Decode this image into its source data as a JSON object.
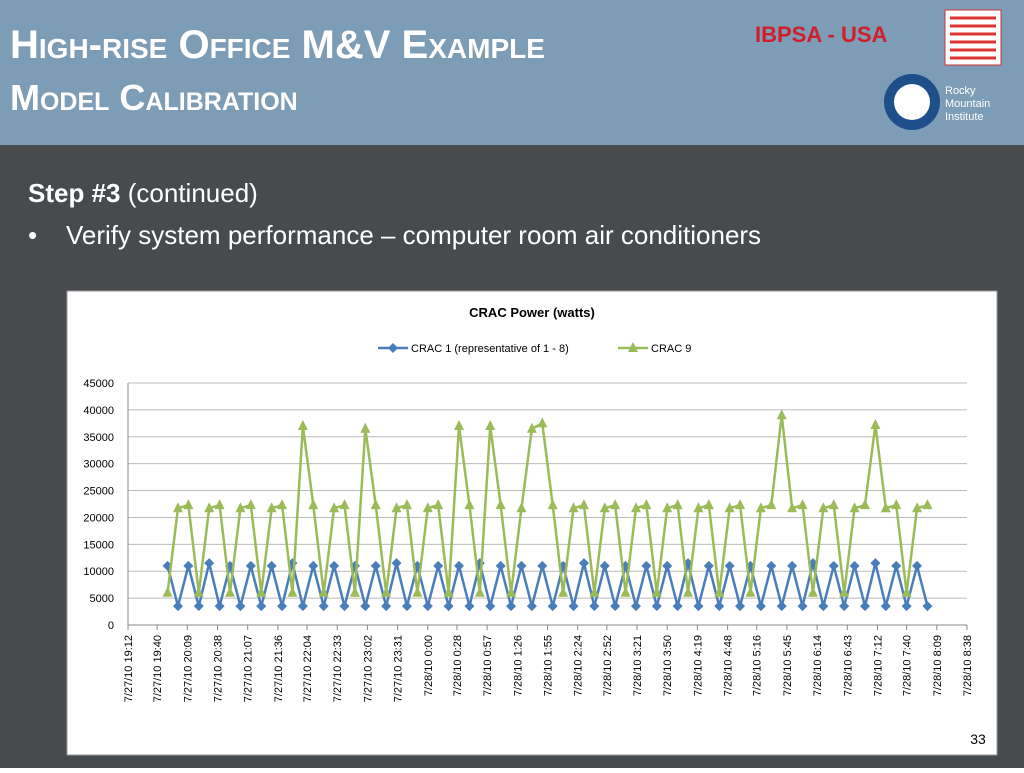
{
  "header": {
    "title": "High-rise Office M&V Example",
    "subtitle": "Model Calibration",
    "org": "IBPSA - USA",
    "logo_text": [
      "Rocky",
      "Mountain",
      "Institute"
    ]
  },
  "body": {
    "step": "Step #3",
    "step_note": "(continued)",
    "bullet": "Verify system performance – computer room air conditioners"
  },
  "page_number": "33",
  "chart_data": {
    "type": "line",
    "title": "CRAC Power (watts)",
    "x": [
      "7/27/10 19:50",
      "7/27/10 20:00",
      "7/27/10 20:10",
      "7/27/10 20:20",
      "7/27/10 20:30",
      "7/27/10 20:40",
      "7/27/10 20:50",
      "7/27/10 21:00",
      "7/27/10 21:10",
      "7/27/10 21:20",
      "7/27/10 21:30",
      "7/27/10 21:40",
      "7/27/10 21:50",
      "7/27/10 22:00",
      "7/27/10 22:10",
      "7/27/10 22:20",
      "7/27/10 22:30",
      "7/27/10 22:40",
      "7/27/10 22:50",
      "7/27/10 23:00",
      "7/27/10 23:10",
      "7/27/10 23:20",
      "7/27/10 23:30",
      "7/27/10 23:40",
      "7/27/10 23:50",
      "7/28/10 0:00",
      "7/28/10 0:10",
      "7/28/10 0:20",
      "7/28/10 0:30",
      "7/28/10 0:40",
      "7/28/10 0:50",
      "7/28/10 1:00",
      "7/28/10 1:10",
      "7/28/10 1:20",
      "7/28/10 1:30",
      "7/28/10 1:40",
      "7/28/10 1:50",
      "7/28/10 2:00",
      "7/28/10 2:10",
      "7/28/10 2:20",
      "7/28/10 2:30",
      "7/28/10 2:40",
      "7/28/10 2:50",
      "7/28/10 3:00",
      "7/28/10 3:10",
      "7/28/10 3:20",
      "7/28/10 3:30",
      "7/28/10 3:40",
      "7/28/10 3:50",
      "7/28/10 4:00",
      "7/28/10 4:10",
      "7/28/10 4:20",
      "7/28/10 4:30",
      "7/28/10 4:40",
      "7/28/10 4:50",
      "7/28/10 5:00",
      "7/28/10 5:10",
      "7/28/10 5:20",
      "7/28/10 5:30",
      "7/28/10 5:40",
      "7/28/10 5:50",
      "7/28/10 6:00",
      "7/28/10 6:10",
      "7/28/10 6:20",
      "7/28/10 6:30",
      "7/28/10 6:40",
      "7/28/10 6:50",
      "7/28/10 7:00",
      "7/28/10 7:10",
      "7/28/10 7:20",
      "7/28/10 7:30",
      "7/28/10 7:40",
      "7/28/10 7:50",
      "7/28/10 8:00"
    ],
    "series": [
      {
        "name": "CRAC 1 (representative of 1 - 8)",
        "color": "#4a7ebb",
        "marker": "diamond",
        "values": [
          11000,
          3500,
          11000,
          3500,
          11500,
          3500,
          11000,
          3500,
          11000,
          3500,
          11000,
          3500,
          11500,
          3500,
          11000,
          3500,
          11000,
          3500,
          11000,
          3500,
          11000,
          3500,
          11500,
          3500,
          11000,
          3500,
          11000,
          3500,
          11000,
          3500,
          11500,
          3500,
          11000,
          3500,
          11000,
          3500,
          11000,
          3500,
          11000,
          3500,
          11500,
          3500,
          11000,
          3500,
          11000,
          3500,
          11000,
          3500,
          11000,
          3500,
          11500,
          3500,
          11000,
          3500,
          11000,
          3500,
          11000,
          3500,
          11000,
          3500,
          11000,
          3500,
          11500,
          3500,
          11000,
          3500,
          11000,
          3500,
          11500,
          3500,
          11000,
          3500,
          11000,
          3500
        ]
      },
      {
        "name": "CRAC 9",
        "color": "#9bbb59",
        "marker": "triangle",
        "values": [
          6000,
          21700,
          22300,
          6000,
          21700,
          22300,
          6000,
          21700,
          22300,
          6000,
          21700,
          22300,
          6000,
          37000,
          22300,
          6000,
          21700,
          22300,
          6000,
          36500,
          22300,
          6000,
          21700,
          22300,
          6000,
          21700,
          22300,
          6000,
          37000,
          22300,
          6000,
          37000,
          22300,
          6000,
          21700,
          36500,
          37500,
          22300,
          6000,
          21700,
          22300,
          6000,
          21700,
          22300,
          6000,
          21700,
          22300,
          6000,
          21700,
          22300,
          6000,
          21700,
          22300,
          6000,
          21700,
          22300,
          6000,
          21700,
          22300,
          39000,
          21700,
          22300,
          6000,
          21700,
          22300,
          6000,
          21700,
          22300,
          37200,
          21700,
          22300,
          6000,
          21700,
          22300
        ]
      }
    ],
    "xlim": [
      "7/27/10 19:12",
      "7/28/10 8:38"
    ],
    "xticks": [
      "7/27/10 19:12",
      "7/27/10 19:40",
      "7/27/10 20:09",
      "7/27/10 20:38",
      "7/27/10 21:07",
      "7/27/10 21:36",
      "7/27/10 22:04",
      "7/27/10 22:33",
      "7/27/10 23:02",
      "7/27/10 23:31",
      "7/28/10 0:00",
      "7/28/10 0:28",
      "7/28/10 0:57",
      "7/28/10 1:26",
      "7/28/10 1:55",
      "7/28/10 2:24",
      "7/28/10 2:52",
      "7/28/10 3:21",
      "7/28/10 3:50",
      "7/28/10 4:19",
      "7/28/10 4:48",
      "7/28/10 5:16",
      "7/28/10 5:45",
      "7/28/10 6:14",
      "7/28/10 6:43",
      "7/28/10 7:12",
      "7/28/10 7:40",
      "7/28/10 8:09",
      "7/28/10 8:38"
    ],
    "ylim": [
      0,
      45000
    ],
    "yticks": [
      0,
      5000,
      10000,
      15000,
      20000,
      25000,
      30000,
      35000,
      40000,
      45000
    ],
    "grid": true,
    "legend": "top"
  }
}
